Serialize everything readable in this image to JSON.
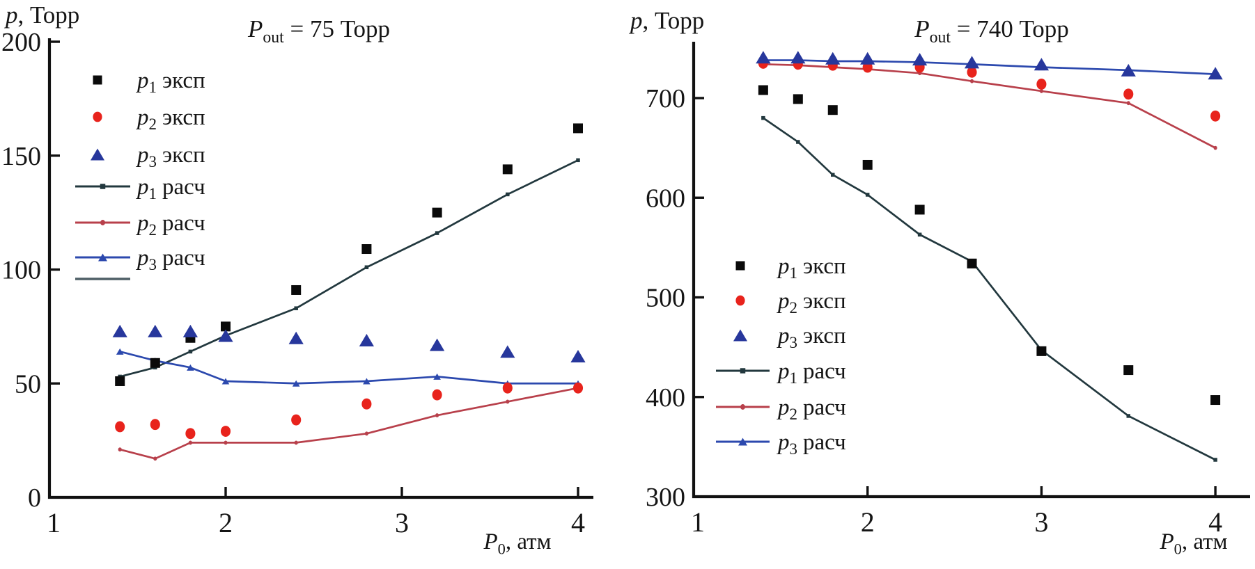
{
  "figure": {
    "background": "#ffffff"
  },
  "colors": {
    "axis": "#111111",
    "text": "#151515",
    "p1_exp": "#0a0a0a",
    "p2_exp": "#e8231c",
    "p3_exp": "#27379c",
    "p1_calc": "#22383e",
    "p2_calc": "#b8404b",
    "p3_calc": "#2c49ae",
    "extra_line": "#4e5f66"
  },
  "chart_data": [
    {
      "type": "scatter",
      "title": {
        "base": "P",
        "sub": "out",
        "rest": " = 75 Торр"
      },
      "y_axis_label": {
        "base": "p",
        "rest": ", Торр"
      },
      "x_axis_label": {
        "base": "P",
        "sub": "0",
        "rest": ", атм"
      },
      "xlim": [
        1,
        4.09
      ],
      "ylim": [
        0,
        200
      ],
      "xticks": [
        1,
        2,
        3,
        4
      ],
      "yticks": [
        0,
        50,
        100,
        150,
        200
      ],
      "grid": false,
      "legend_position": "upper-left-inside",
      "legend_extra_line": true,
      "x": [
        1.4,
        1.6,
        1.8,
        2.0,
        2.4,
        2.8,
        3.2,
        3.6,
        4.0
      ],
      "series": [
        {
          "name_base": "p",
          "name_sub": "1",
          "name_rest": "эксп",
          "kind": "exp",
          "marker": "square",
          "color_key": "p1_exp",
          "values": [
            51,
            59,
            70,
            75,
            91,
            109,
            125,
            144,
            162
          ]
        },
        {
          "name_base": "p",
          "name_sub": "2",
          "name_rest": "эксп",
          "kind": "exp",
          "marker": "circle",
          "color_key": "p2_exp",
          "values": [
            31,
            32,
            28,
            29,
            34,
            41,
            45,
            48,
            48
          ]
        },
        {
          "name_base": "p",
          "name_sub": "3",
          "name_rest": "эксп",
          "kind": "exp",
          "marker": "triangle",
          "color_key": "p3_exp",
          "values": [
            73,
            73,
            73,
            71,
            70,
            69,
            67,
            64,
            62
          ]
        },
        {
          "name_base": "p",
          "name_sub": "1",
          "name_rest": "расч",
          "kind": "calc",
          "marker": "square",
          "color_key": "p1_calc",
          "values": [
            53,
            57,
            64,
            71,
            83,
            101,
            116,
            133,
            148
          ]
        },
        {
          "name_base": "p",
          "name_sub": "2",
          "name_rest": "расч",
          "kind": "calc",
          "marker": "circle",
          "color_key": "p2_calc",
          "values": [
            21,
            17,
            24,
            24,
            24,
            28,
            36,
            42,
            48
          ]
        },
        {
          "name_base": "p",
          "name_sub": "3",
          "name_rest": "расч",
          "kind": "calc",
          "marker": "triangle",
          "color_key": "p3_calc",
          "values": [
            64,
            60,
            57,
            51,
            50,
            51,
            53,
            50,
            50
          ]
        }
      ]
    },
    {
      "type": "scatter",
      "title": {
        "base": "P",
        "sub": "out",
        "rest": " = 740 Торр"
      },
      "y_axis_label": {
        "base": "p",
        "rest": ", Торр"
      },
      "x_axis_label": {
        "base": "P",
        "sub": "0",
        "rest": ", атм"
      },
      "xlim": [
        1,
        4.2
      ],
      "ylim": [
        300,
        757
      ],
      "xticks": [
        1,
        2,
        3,
        4
      ],
      "yticks": [
        300,
        400,
        500,
        600,
        700
      ],
      "grid": false,
      "legend_position": "middle-left-inside",
      "legend_extra_line": false,
      "x": [
        1.4,
        1.6,
        1.8,
        2.0,
        2.3,
        2.6,
        3.0,
        3.5,
        4.0
      ],
      "series": [
        {
          "name_base": "p",
          "name_sub": "1",
          "name_rest": "эксп",
          "kind": "exp",
          "marker": "square",
          "color_key": "p1_exp",
          "values": [
            708,
            699,
            688,
            633,
            588,
            534,
            446,
            427,
            397
          ]
        },
        {
          "name_base": "p",
          "name_sub": "2",
          "name_rest": "эксп",
          "kind": "exp",
          "marker": "circle",
          "color_key": "p2_exp",
          "values": [
            735,
            734,
            733,
            731,
            731,
            726,
            714,
            704,
            682
          ]
        },
        {
          "name_base": "p",
          "name_sub": "3",
          "name_rest": "эксп",
          "kind": "exp",
          "marker": "triangle",
          "color_key": "p3_exp",
          "values": [
            741,
            741,
            740,
            740,
            739,
            736,
            734,
            728,
            725
          ]
        },
        {
          "name_base": "p",
          "name_sub": "1",
          "name_rest": "расч",
          "kind": "calc",
          "marker": "square",
          "color_key": "p1_calc",
          "values": [
            680,
            656,
            623,
            603,
            563,
            536,
            447,
            381,
            337
          ]
        },
        {
          "name_base": "p",
          "name_sub": "2",
          "name_rest": "расч",
          "kind": "calc",
          "marker": "circle",
          "color_key": "p2_calc",
          "values": [
            734,
            733,
            731,
            729,
            725,
            717,
            707,
            695,
            650
          ]
        },
        {
          "name_base": "p",
          "name_sub": "3",
          "name_rest": "расч",
          "kind": "calc",
          "marker": "triangle",
          "color_key": "p3_calc",
          "values": [
            738,
            738,
            737,
            737,
            736,
            734,
            731,
            728,
            724
          ]
        }
      ]
    }
  ]
}
